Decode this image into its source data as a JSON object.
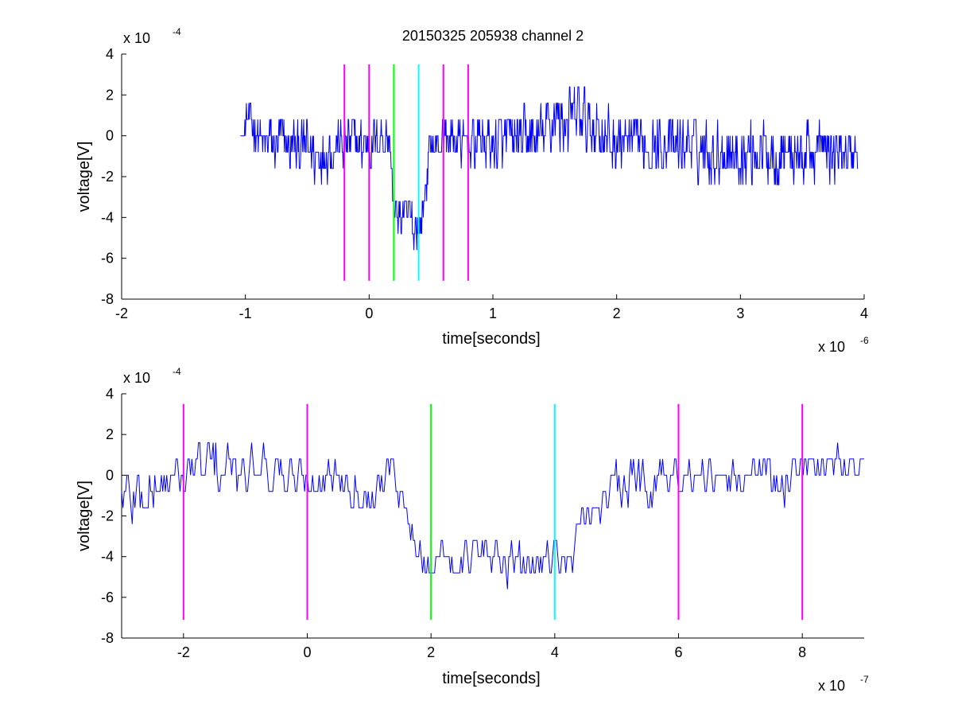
{
  "figure_title": "20150325 205938 channel 2",
  "chart_data": [
    {
      "type": "line",
      "xlabel": "time[seconds]",
      "ylabel": "voltage[V]",
      "x_exponent_base": "x 10",
      "x_exponent": "-6",
      "y_exponent_base": "x 10",
      "y_exponent": "-4",
      "xlim": [
        -2,
        4
      ],
      "ylim": [
        -8,
        4
      ],
      "xticks": [
        -2,
        -1,
        0,
        1,
        2,
        3,
        4
      ],
      "yticks": [
        -8,
        -6,
        -4,
        -2,
        0,
        2,
        4
      ],
      "series_color": "#0000ff",
      "signal_envelope": [
        {
          "x": -1.04,
          "lo": 0.0,
          "hi": 0.0
        },
        {
          "x": -1.0,
          "lo": -0.8,
          "hi": 1.6
        },
        {
          "x": -0.95,
          "lo": -0.8,
          "hi": 2.4
        },
        {
          "x": -0.9,
          "lo": -1.6,
          "hi": 1.6
        },
        {
          "x": -0.8,
          "lo": -2.4,
          "hi": 1.6
        },
        {
          "x": -0.6,
          "lo": -2.4,
          "hi": 1.6
        },
        {
          "x": -0.42,
          "lo": -3.2,
          "hi": 1.6
        },
        {
          "x": -0.2,
          "lo": -2.4,
          "hi": 1.6
        },
        {
          "x": 0.0,
          "lo": -2.4,
          "hi": 1.6
        },
        {
          "x": 0.14,
          "lo": -1.6,
          "hi": 1.6
        },
        {
          "x": 0.17,
          "lo": -2.4,
          "hi": 0.8
        },
        {
          "x": 0.2,
          "lo": -5.6,
          "hi": -2.4
        },
        {
          "x": 0.3,
          "lo": -5.6,
          "hi": -2.4
        },
        {
          "x": 0.36,
          "lo": -6.4,
          "hi": -2.4
        },
        {
          "x": 0.4,
          "lo": -6.4,
          "hi": -2.4
        },
        {
          "x": 0.44,
          "lo": -4.8,
          "hi": -1.6
        },
        {
          "x": 0.48,
          "lo": -2.4,
          "hi": 0.8
        },
        {
          "x": 0.6,
          "lo": -1.6,
          "hi": 1.6
        },
        {
          "x": 1.0,
          "lo": -2.4,
          "hi": 1.6
        },
        {
          "x": 1.4,
          "lo": -2.4,
          "hi": 2.4
        },
        {
          "x": 1.5,
          "lo": -1.6,
          "hi": 3.2
        },
        {
          "x": 1.72,
          "lo": -1.6,
          "hi": 3.2
        },
        {
          "x": 2.0,
          "lo": -2.4,
          "hi": 1.6
        },
        {
          "x": 2.5,
          "lo": -2.4,
          "hi": 1.6
        },
        {
          "x": 3.0,
          "lo": -3.2,
          "hi": 1.6
        },
        {
          "x": 3.5,
          "lo": -3.2,
          "hi": 1.6
        },
        {
          "x": 3.95,
          "lo": -2.4,
          "hi": 0.8
        }
      ],
      "markers": [
        {
          "x": -0.2,
          "color": "#ff00ff",
          "ymin": -7.1,
          "ymax": 3.5
        },
        {
          "x": 0.0,
          "color": "#ff00ff",
          "ymin": -7.1,
          "ymax": 3.5
        },
        {
          "x": 0.2,
          "color": "#00ff00",
          "ymin": -7.1,
          "ymax": 3.5
        },
        {
          "x": 0.4,
          "color": "#00ffff",
          "ymin": -7.1,
          "ymax": 3.5
        },
        {
          "x": 0.6,
          "color": "#ff00ff",
          "ymin": -7.1,
          "ymax": 3.5
        },
        {
          "x": 0.8,
          "color": "#ff00ff",
          "ymin": -7.1,
          "ymax": 3.5
        }
      ]
    },
    {
      "type": "line",
      "xlabel": "time[seconds]",
      "ylabel": "voltage[V]",
      "x_exponent_base": "x 10",
      "x_exponent": "-7",
      "y_exponent_base": "x 10",
      "y_exponent": "-4",
      "xlim": [
        -3,
        9
      ],
      "ylim": [
        -8,
        4
      ],
      "xticks": [
        -2,
        0,
        2,
        4,
        6,
        8
      ],
      "yticks": [
        -8,
        -6,
        -4,
        -2,
        0,
        2,
        4
      ],
      "series_color": "#0000ff",
      "signal_envelope": [
        {
          "x": -3.0,
          "lo": -3.2,
          "hi": 0.8
        },
        {
          "x": -2.5,
          "lo": -3.2,
          "hi": 1.6
        },
        {
          "x": -2.0,
          "lo": -1.6,
          "hi": 1.6
        },
        {
          "x": -1.6,
          "lo": -2.4,
          "hi": 3.2
        },
        {
          "x": -1.0,
          "lo": -1.6,
          "hi": 1.6
        },
        {
          "x": -0.8,
          "lo": -0.8,
          "hi": 3.2
        },
        {
          "x": -0.4,
          "lo": -1.6,
          "hi": 1.6
        },
        {
          "x": 0.0,
          "lo": -1.6,
          "hi": 1.6
        },
        {
          "x": 0.6,
          "lo": -1.6,
          "hi": 1.6
        },
        {
          "x": 1.0,
          "lo": -2.4,
          "hi": 0.8
        },
        {
          "x": 1.4,
          "lo": -0.8,
          "hi": 1.6
        },
        {
          "x": 1.6,
          "lo": -3.2,
          "hi": -1.6
        },
        {
          "x": 1.8,
          "lo": -5.6,
          "hi": -2.4
        },
        {
          "x": 2.0,
          "lo": -5.6,
          "hi": -2.4
        },
        {
          "x": 2.4,
          "lo": -5.6,
          "hi": -2.4
        },
        {
          "x": 3.0,
          "lo": -5.6,
          "hi": -2.4
        },
        {
          "x": 3.6,
          "lo": -6.4,
          "hi": -2.4
        },
        {
          "x": 4.0,
          "lo": -4.8,
          "hi": -2.4
        },
        {
          "x": 4.2,
          "lo": -6.4,
          "hi": -3.2
        },
        {
          "x": 4.4,
          "lo": -4.0,
          "hi": -1.6
        },
        {
          "x": 4.8,
          "lo": -2.4,
          "hi": 0.8
        },
        {
          "x": 5.2,
          "lo": -2.4,
          "hi": 1.6
        },
        {
          "x": 6.0,
          "lo": -1.6,
          "hi": 1.6
        },
        {
          "x": 6.6,
          "lo": -1.6,
          "hi": 0.8
        },
        {
          "x": 7.2,
          "lo": -0.8,
          "hi": 1.6
        },
        {
          "x": 7.6,
          "lo": -2.4,
          "hi": 1.6
        },
        {
          "x": 8.0,
          "lo": -0.8,
          "hi": 2.4
        },
        {
          "x": 8.4,
          "lo": -0.8,
          "hi": 1.6
        },
        {
          "x": 8.8,
          "lo": -0.8,
          "hi": 2.4
        },
        {
          "x": 9.0,
          "lo": 0.0,
          "hi": 0.8
        }
      ],
      "markers": [
        {
          "x": -2,
          "color": "#ff00ff",
          "ymin": -7.1,
          "ymax": 3.5
        },
        {
          "x": 0,
          "color": "#ff00ff",
          "ymin": -7.1,
          "ymax": 3.5
        },
        {
          "x": 2,
          "color": "#00ff00",
          "ymin": -7.1,
          "ymax": 3.5
        },
        {
          "x": 4,
          "color": "#00ffff",
          "ymin": -7.1,
          "ymax": 3.5
        },
        {
          "x": 6,
          "color": "#ff00ff",
          "ymin": -7.1,
          "ymax": 3.5
        },
        {
          "x": 8,
          "color": "#ff00ff",
          "ymin": -7.1,
          "ymax": 3.5
        }
      ]
    }
  ]
}
